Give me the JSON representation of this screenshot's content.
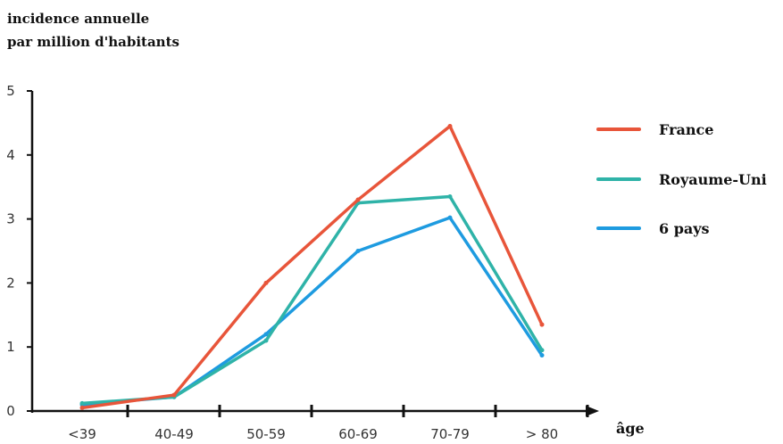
{
  "chart_data": {
    "type": "line",
    "ylabel": [
      "incidence annuelle",
      "par million d'habitants"
    ],
    "xlabel": "âge",
    "categories": [
      "<39",
      "40-49",
      "50-59",
      "60-69",
      "70-79",
      "> 80"
    ],
    "ylim": [
      0,
      5
    ],
    "yticks": [
      "0",
      "1",
      "2",
      "3",
      "4",
      "5"
    ],
    "grid": false,
    "legend_position": "right",
    "series": [
      {
        "name": "France",
        "color": "#e8553a",
        "values": [
          0.05,
          0.25,
          2.0,
          3.3,
          4.45,
          1.35
        ]
      },
      {
        "name": "Royaume-Uni",
        "color": "#2fb3a8",
        "values": [
          0.12,
          0.22,
          1.1,
          3.25,
          3.35,
          0.95
        ]
      },
      {
        "name": "6 pays",
        "color": "#1e9be0",
        "values": [
          0.1,
          0.22,
          1.2,
          2.5,
          3.02,
          0.87
        ]
      }
    ]
  }
}
